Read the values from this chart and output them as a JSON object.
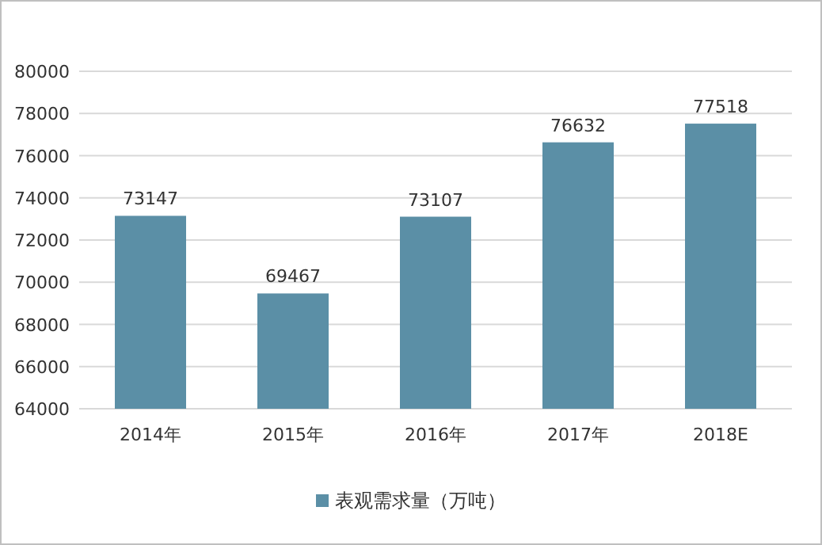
{
  "chart_data": {
    "type": "bar",
    "categories": [
      "2014年",
      "2015年",
      "2016年",
      "2017年",
      "2018E"
    ],
    "series": [
      {
        "name": "表观需求量（万吨）",
        "color": "#5b8fa6",
        "values": [
          73147,
          69467,
          73107,
          76632,
          77518
        ]
      }
    ],
    "ylim": [
      64000,
      80000
    ],
    "yticks": [
      64000,
      66000,
      68000,
      70000,
      72000,
      74000,
      76000,
      78000,
      80000
    ],
    "grid": "y",
    "legend": "bottom",
    "data_labels": true
  }
}
